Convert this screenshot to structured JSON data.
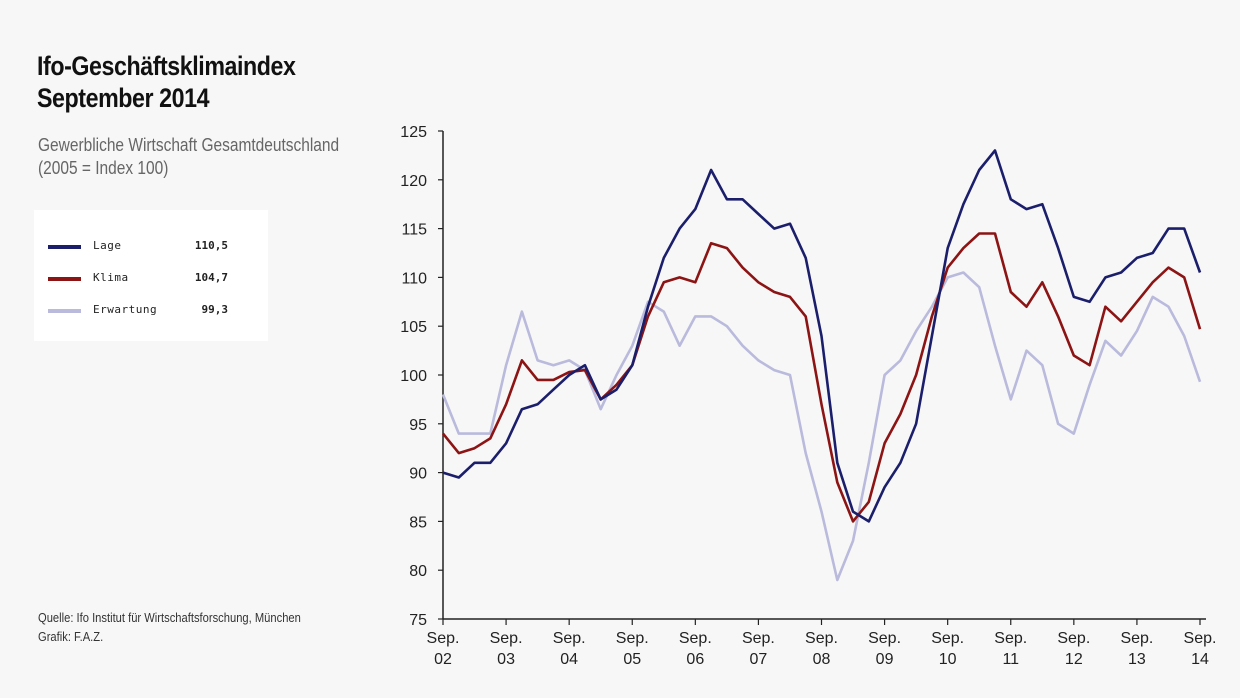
{
  "chart_data": {
    "type": "line",
    "title": "Ifo-Geschäftsklimaindex September 2014",
    "title_lines": [
      "Ifo-Geschäftsklimaindex",
      "September 2014"
    ],
    "subtitle_lines": [
      "Gewerbliche Wirtschaft Gesamtdeutschland",
      "(2005 = Index 100)"
    ],
    "xlabel": "",
    "ylabel": "",
    "ylim": [
      75,
      125
    ],
    "yticks": [
      "75",
      "80",
      "85",
      "90",
      "95",
      "100",
      "105",
      "110",
      "115",
      "120",
      "125"
    ],
    "xticks": [
      {
        "line1": "Sep.",
        "line2": "02"
      },
      {
        "line1": "Sep.",
        "line2": "03"
      },
      {
        "line1": "Sep.",
        "line2": "04"
      },
      {
        "line1": "Sep.",
        "line2": "05"
      },
      {
        "line1": "Sep.",
        "line2": "06"
      },
      {
        "line1": "Sep.",
        "line2": "07"
      },
      {
        "line1": "Sep.",
        "line2": "08"
      },
      {
        "line1": "Sep.",
        "line2": "09"
      },
      {
        "line1": "Sep.",
        "line2": "10"
      },
      {
        "line1": "Sep.",
        "line2": "11"
      },
      {
        "line1": "Sep.",
        "line2": "12"
      },
      {
        "line1": "Sep.",
        "line2": "13"
      },
      {
        "line1": "Sep.",
        "line2": "14"
      }
    ],
    "x": [
      "2002-09",
      "2002-12",
      "2003-03",
      "2003-06",
      "2003-09",
      "2003-12",
      "2004-03",
      "2004-06",
      "2004-09",
      "2004-12",
      "2005-03",
      "2005-06",
      "2005-09",
      "2005-12",
      "2006-03",
      "2006-06",
      "2006-09",
      "2006-12",
      "2007-03",
      "2007-06",
      "2007-09",
      "2007-12",
      "2008-03",
      "2008-06",
      "2008-09",
      "2008-12",
      "2009-03",
      "2009-06",
      "2009-09",
      "2009-12",
      "2010-03",
      "2010-06",
      "2010-09",
      "2010-12",
      "2011-03",
      "2011-06",
      "2011-09",
      "2011-12",
      "2012-03",
      "2012-06",
      "2012-09",
      "2012-12",
      "2013-03",
      "2013-06",
      "2013-09",
      "2013-12",
      "2014-03",
      "2014-06",
      "2014-09"
    ],
    "grid": false,
    "legend_position": "left",
    "series": [
      {
        "name": "Lage",
        "latest": "110,5",
        "color": "#1b1f6b",
        "values": [
          90,
          89.5,
          91,
          91,
          93,
          96.5,
          97,
          98.5,
          100,
          101,
          97.5,
          98.5,
          101,
          107,
          112,
          115,
          117,
          121,
          118,
          118,
          116.5,
          115,
          115.5,
          112,
          104,
          91,
          86,
          85,
          88.5,
          91,
          95,
          104,
          113,
          117.5,
          121,
          123,
          118,
          117,
          117.5,
          113,
          108,
          107.5,
          110,
          110.5,
          112,
          112.5,
          115,
          115,
          110.5
        ]
      },
      {
        "name": "Klima",
        "latest": "104,7",
        "color": "#8c1414",
        "values": [
          94,
          92,
          92.5,
          93.5,
          97,
          101.5,
          99.5,
          99.5,
          100.3,
          100.5,
          97.5,
          99,
          101,
          106,
          109.5,
          110,
          109.5,
          113.5,
          113,
          111,
          109.5,
          108.5,
          108,
          106,
          97,
          89,
          85,
          87,
          93,
          96,
          100,
          106,
          111,
          113,
          114.5,
          114.5,
          108.5,
          107,
          109.5,
          106,
          102,
          101,
          107,
          105.5,
          107.5,
          109.5,
          111,
          110,
          104.7
        ]
      },
      {
        "name": "Erwartung",
        "latest": "99,3",
        "color": "#b9badc",
        "values": [
          98,
          94,
          94,
          94,
          101,
          106.5,
          101.5,
          101,
          101.5,
          100.5,
          96.5,
          100,
          103,
          107.5,
          106.5,
          103,
          106,
          106,
          105,
          103,
          101.5,
          100.5,
          100,
          92,
          86,
          79,
          83,
          91,
          100,
          101.5,
          104.5,
          107,
          110,
          110.5,
          109,
          103,
          97.5,
          102.5,
          101,
          95,
          94,
          99,
          103.5,
          102,
          104.5,
          108,
          107,
          104,
          99.3
        ]
      }
    ]
  },
  "source": {
    "line1": "Quelle: Ifo Institut für Wirtschaftsforschung, München",
    "line2": "Grafik: F.A.Z."
  }
}
